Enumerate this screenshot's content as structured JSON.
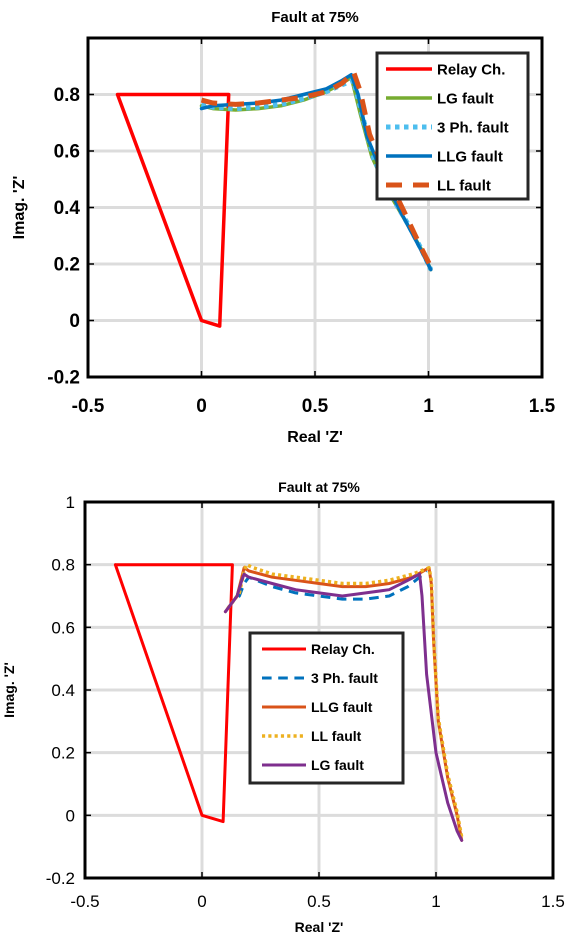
{
  "chart_data": [
    {
      "type": "line",
      "title": "Fault at 75%",
      "xlabel": "Real 'Z'",
      "ylabel": "Imag. 'Z'",
      "xlim": [
        -0.5,
        1.5
      ],
      "ylim": [
        -0.2,
        1.0
      ],
      "xticks": [
        "-0.5",
        "0",
        "0.5",
        "1",
        "1.5"
      ],
      "yticks": [
        "-0.2",
        "0",
        "0.2",
        "0.4",
        "0.6",
        "0.8",
        ""
      ],
      "grid": true,
      "legend_position": "top-right",
      "series": [
        {
          "name": "Relay Ch.",
          "color": "#ff0000",
          "dash": "solid",
          "width": 3.5,
          "x": [
            -0.37,
            0.12,
            0.12,
            0.08,
            0.0,
            -0.37
          ],
          "y": [
            0.8,
            0.8,
            0.8,
            -0.02,
            0.0,
            0.8
          ]
        },
        {
          "name": "LG fault",
          "color": "#77ac30",
          "dash": "solid",
          "width": 3.5,
          "x": [
            0.0,
            0.05,
            0.15,
            0.25,
            0.35,
            0.45,
            0.55,
            0.62,
            0.66,
            0.7,
            0.75,
            0.82,
            0.9,
            0.97,
            1.01
          ],
          "y": [
            0.76,
            0.75,
            0.745,
            0.75,
            0.76,
            0.78,
            0.81,
            0.84,
            0.86,
            0.73,
            0.58,
            0.46,
            0.35,
            0.25,
            0.18
          ]
        },
        {
          "name": "3 Ph. fault",
          "color": "#4dbeee",
          "dash": "dotted",
          "width": 5,
          "x": [
            0.0,
            0.05,
            0.15,
            0.25,
            0.35,
            0.45,
            0.55,
            0.62,
            0.67,
            0.71,
            0.76,
            0.83,
            0.91,
            0.97,
            1.01
          ],
          "y": [
            0.765,
            0.755,
            0.75,
            0.755,
            0.765,
            0.785,
            0.81,
            0.835,
            0.85,
            0.72,
            0.57,
            0.45,
            0.34,
            0.25,
            0.18
          ]
        },
        {
          "name": "LLG fault",
          "color": "#0072bd",
          "dash": "solid",
          "width": 3.5,
          "x": [
            0.0,
            0.05,
            0.15,
            0.25,
            0.35,
            0.45,
            0.55,
            0.62,
            0.66,
            0.69,
            0.73,
            0.8,
            0.88,
            0.96,
            1.01
          ],
          "y": [
            0.75,
            0.76,
            0.765,
            0.77,
            0.78,
            0.8,
            0.82,
            0.85,
            0.87,
            0.8,
            0.65,
            0.51,
            0.38,
            0.26,
            0.18
          ]
        },
        {
          "name": "LL fault",
          "color": "#d95319",
          "dash": "dashed",
          "width": 5,
          "x": [
            0.0,
            0.05,
            0.15,
            0.25,
            0.35,
            0.45,
            0.55,
            0.62,
            0.67,
            0.7,
            0.74,
            0.81,
            0.89,
            0.96,
            1.01
          ],
          "y": [
            0.78,
            0.77,
            0.765,
            0.77,
            0.78,
            0.79,
            0.81,
            0.84,
            0.88,
            0.81,
            0.66,
            0.52,
            0.39,
            0.27,
            0.19
          ]
        }
      ]
    },
    {
      "type": "line",
      "title": "Fault at 75%",
      "xlabel": "Real 'Z'",
      "ylabel": "Imag. 'Z'",
      "xlim": [
        -0.5,
        1.5
      ],
      "ylim": [
        -0.2,
        1.0
      ],
      "xticks": [
        "-0.5",
        "0",
        "0.5",
        "1",
        "1.5"
      ],
      "yticks": [
        "-0.2",
        "0",
        "0.2",
        "0.4",
        "0.6",
        "0.8",
        "1"
      ],
      "grid": true,
      "legend_position": "center",
      "series": [
        {
          "name": "Relay Ch.",
          "color": "#ff0000",
          "dash": "solid",
          "width": 3,
          "x": [
            -0.37,
            0.13,
            0.13,
            0.09,
            0.0,
            -0.37
          ],
          "y": [
            0.8,
            0.8,
            0.8,
            -0.02,
            0.0,
            0.8
          ]
        },
        {
          "name": "3 Ph. fault",
          "color": "#0072bd",
          "dash": "dashed",
          "width": 3,
          "x": [
            0.11,
            0.14,
            0.16,
            0.18,
            0.2,
            0.3,
            0.4,
            0.5,
            0.6,
            0.7,
            0.8,
            0.88,
            0.93,
            0.96
          ],
          "y": [
            0.66,
            0.69,
            0.7,
            0.74,
            0.76,
            0.73,
            0.71,
            0.7,
            0.69,
            0.69,
            0.7,
            0.73,
            0.76,
            0.78
          ]
        },
        {
          "name": "LLG fault",
          "color": "#d95319",
          "dash": "solid",
          "width": 3,
          "x": [
            0.1,
            0.13,
            0.15,
            0.17,
            0.18,
            0.2,
            0.3,
            0.4,
            0.5,
            0.6,
            0.7,
            0.8,
            0.9,
            0.97,
            0.98,
            0.99,
            1.01,
            1.05,
            1.09,
            1.11
          ],
          "y": [
            0.65,
            0.68,
            0.7,
            0.76,
            0.79,
            0.78,
            0.76,
            0.75,
            0.74,
            0.73,
            0.73,
            0.74,
            0.76,
            0.79,
            0.74,
            0.55,
            0.3,
            0.12,
            0.0,
            -0.08
          ]
        },
        {
          "name": "LL fault",
          "color": "#edb120",
          "dash": "dotted",
          "width": 3.5,
          "x": [
            0.11,
            0.14,
            0.16,
            0.18,
            0.19,
            0.22,
            0.3,
            0.4,
            0.5,
            0.6,
            0.7,
            0.8,
            0.9,
            0.97,
            0.98,
            0.99,
            1.01,
            1.05,
            1.09,
            1.11
          ],
          "y": [
            0.66,
            0.69,
            0.71,
            0.78,
            0.8,
            0.79,
            0.77,
            0.76,
            0.75,
            0.74,
            0.74,
            0.75,
            0.77,
            0.79,
            0.75,
            0.56,
            0.31,
            0.13,
            0.01,
            -0.07
          ]
        },
        {
          "name": "LG fault",
          "color": "#7e2f8e",
          "dash": "solid",
          "width": 3,
          "x": [
            0.1,
            0.13,
            0.15,
            0.17,
            0.18,
            0.2,
            0.3,
            0.4,
            0.5,
            0.6,
            0.7,
            0.8,
            0.88,
            0.93,
            0.94,
            0.96,
            1.0,
            1.05,
            1.09,
            1.11
          ],
          "y": [
            0.65,
            0.68,
            0.7,
            0.75,
            0.77,
            0.76,
            0.74,
            0.72,
            0.71,
            0.7,
            0.71,
            0.72,
            0.75,
            0.77,
            0.7,
            0.45,
            0.2,
            0.04,
            -0.05,
            -0.08
          ]
        }
      ]
    }
  ]
}
